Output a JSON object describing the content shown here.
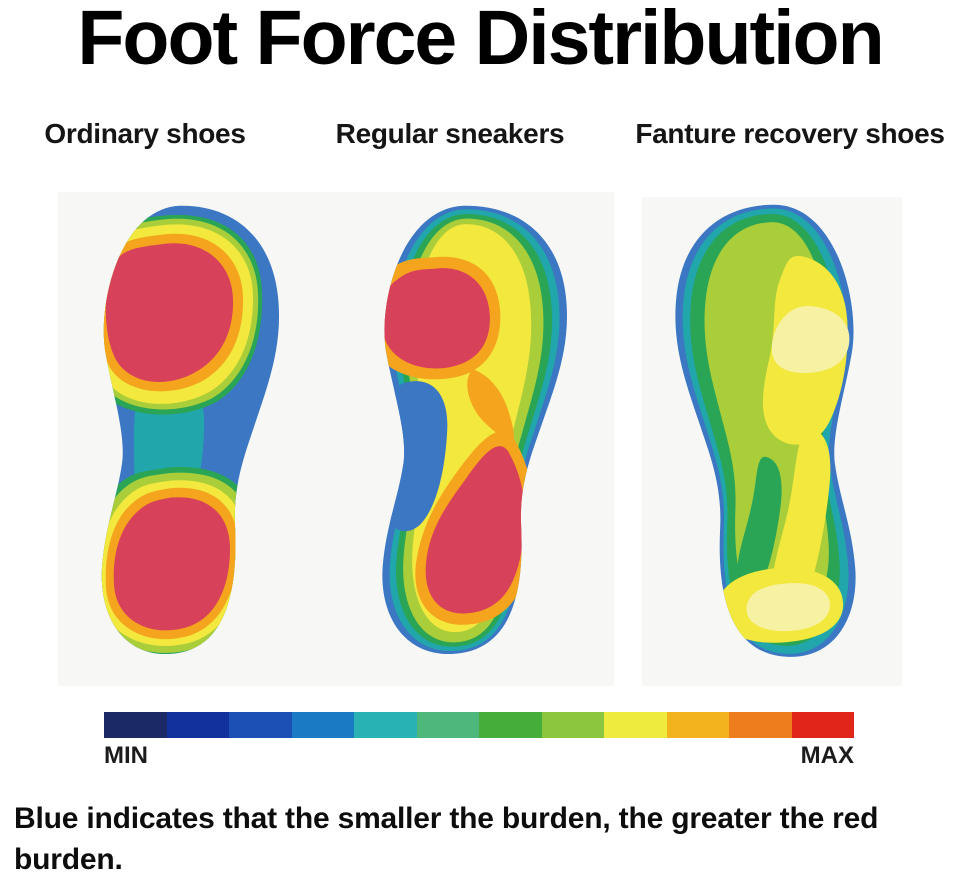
{
  "title": "Foot Force Distribution",
  "columns": [
    {
      "label": "Ordinary shoes"
    },
    {
      "label": "Regular sneakers"
    },
    {
      "label": "Fanture recovery shoes"
    }
  ],
  "legend": {
    "min_label": "MIN",
    "max_label": "MAX",
    "colors": [
      "#1b2a66",
      "#13319c",
      "#1c50b4",
      "#1b7ac4",
      "#29b2b4",
      "#4eb87c",
      "#45ad3a",
      "#8cc63f",
      "#eeea3e",
      "#f2b31c",
      "#ee7d1b",
      "#e0251a"
    ]
  },
  "caption": "Blue indicates that the smaller the burden, the greater the red burden.",
  "palette": {
    "outline_blue": "#3b77c3",
    "teal": "#21a7ab",
    "green": "#2aa455",
    "yellow_green": "#a9ce3a",
    "yellow": "#f2e83e",
    "pale_yellow": "#f7f1a4",
    "orange": "#f5a41e",
    "red": "#d8415a",
    "panel_background": "#f7f7f6",
    "text": "#111111"
  },
  "chart_data": {
    "type": "heatmap",
    "title": "Foot Force Distribution",
    "categories": [
      "Ordinary shoes",
      "Regular sneakers",
      "Fanture recovery shoes"
    ],
    "scale": {
      "min": "MIN",
      "max": "MAX",
      "colors_low_to_high": [
        "#1b2a66",
        "#13319c",
        "#1c50b4",
        "#1b7ac4",
        "#29b2b4",
        "#4eb87c",
        "#45ad3a",
        "#8cc63f",
        "#eeea3e",
        "#f2b31c",
        "#ee7d1b",
        "#e0251a"
      ]
    },
    "series": [
      {
        "name": "Ordinary shoes",
        "zones": {
          "forefoot": "maximum pressure (large red core ringed by orange and yellow)",
          "midfoot": "minimal pressure (blue with teal streak)",
          "heel": "maximum pressure (large red core ringed by orange and yellow)"
        }
      },
      {
        "name": "Regular sneakers",
        "zones": {
          "forefoot": "high pressure (smaller red core with orange ring, broad yellow field)",
          "midfoot": "moderate pressure (yellow and green bands, blue on inner edge)",
          "heel": "high pressure (elongated red core with orange ring)"
        }
      },
      {
        "name": "Fanture recovery shoes",
        "zones": {
          "forefoot": "low-moderate pressure (green with soft yellow patch, no red)",
          "midfoot": "low pressure (green and teal)",
          "heel": "moderate pressure (yellow patch, no red)"
        }
      }
    ],
    "legend_position": "bottom",
    "annotation": "Blue indicates that the smaller the burden, the greater the red burden."
  }
}
